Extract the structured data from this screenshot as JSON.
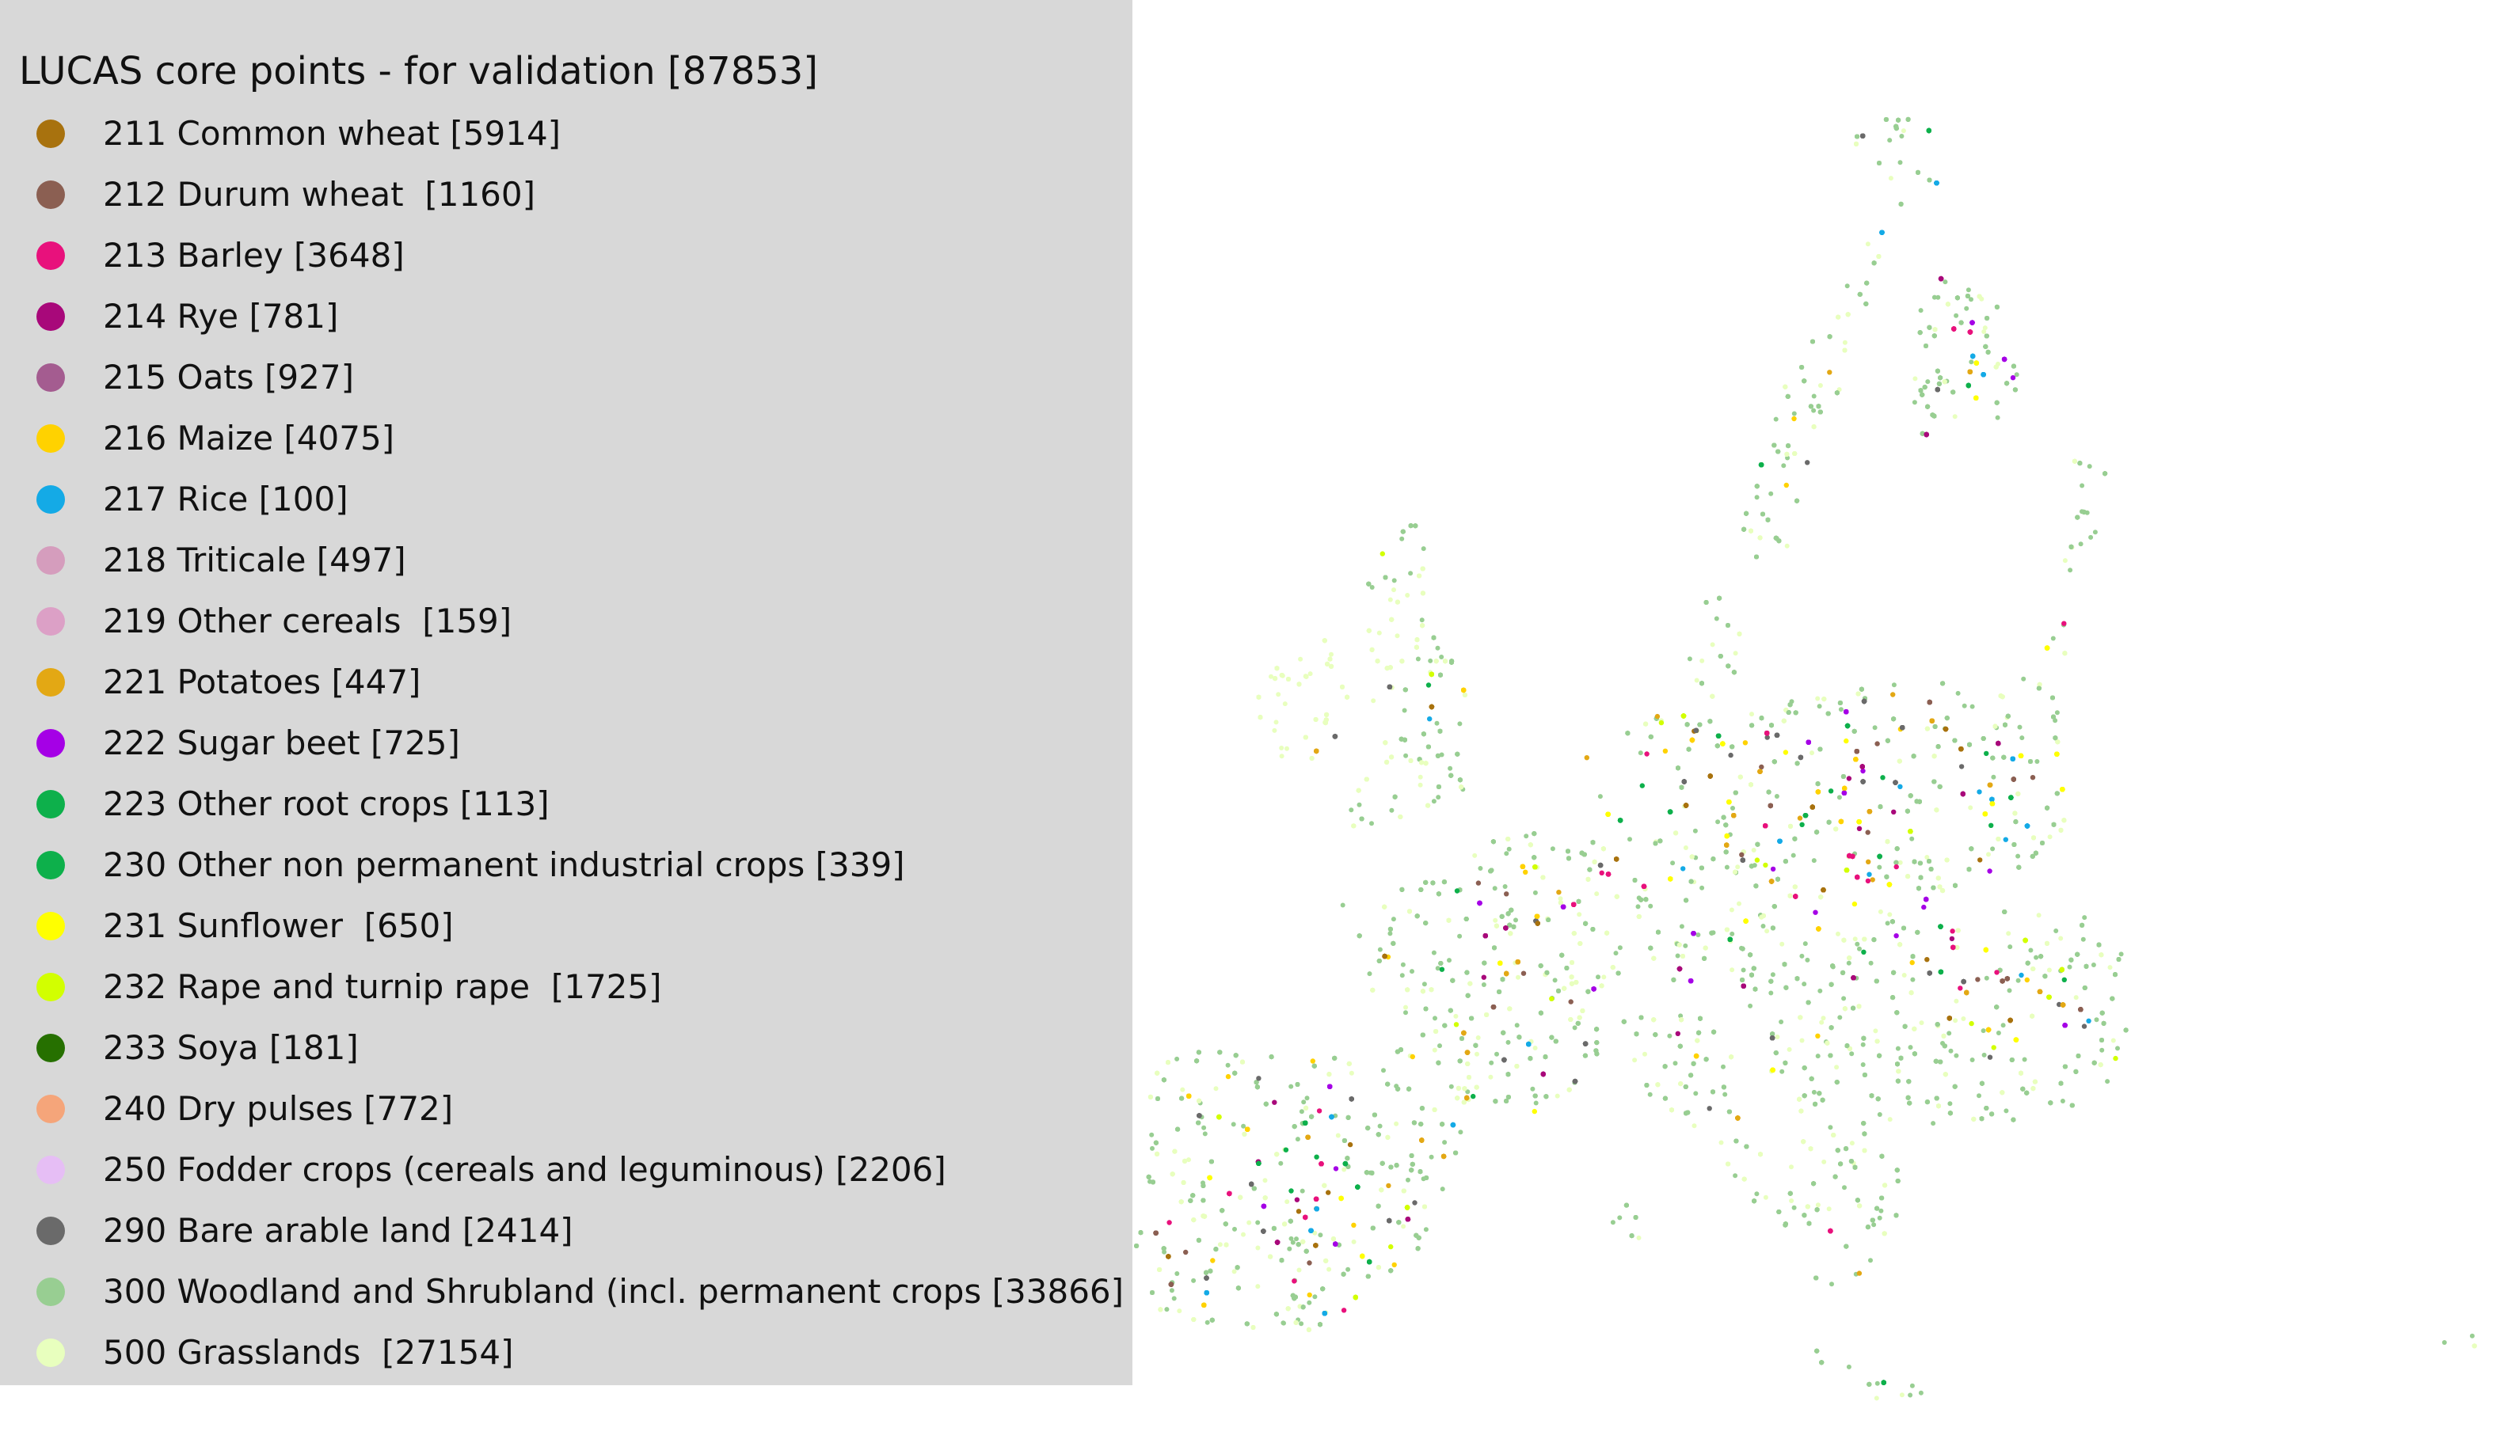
{
  "legend": {
    "title": "LUCAS core points - for validation [87853]",
    "items": [
      {
        "label": "211 Common wheat [5914]",
        "color": "#a8720e"
      },
      {
        "label": "212 Durum wheat  [1160]",
        "color": "#8b5f52"
      },
      {
        "label": "213 Barley [3648]",
        "color": "#e8117c"
      },
      {
        "label": "214 Rye [781]",
        "color": "#a8087a"
      },
      {
        "label": "215 Oats [927]",
        "color": "#a45c90"
      },
      {
        "label": "216 Maize [4075]",
        "color": "#ffd200"
      },
      {
        "label": "217 Rice [100]",
        "color": "#14aae6"
      },
      {
        "label": "218 Triticale [497]",
        "color": "#d59dbd"
      },
      {
        "label": "219 Other cereals  [159]",
        "color": "#dca0c6"
      },
      {
        "label": "221 Potatoes [447]",
        "color": "#e3a814"
      },
      {
        "label": "222 Sugar beet [725]",
        "color": "#a500e6"
      },
      {
        "label": "223 Other root crops [113]",
        "color": "#0db04b"
      },
      {
        "label": "230 Other non permanent industrial crops [339]",
        "color": "#0db04b"
      },
      {
        "label": "231 Sunflower  [650]",
        "color": "#ffff00"
      },
      {
        "label": "232 Rape and turnip rape  [1725]",
        "color": "#d2ff00"
      },
      {
        "label": "233 Soya [181]",
        "color": "#267000"
      },
      {
        "label": "240 Dry pulses [772]",
        "color": "#f5a57a"
      },
      {
        "label": "250 Fodder crops (cereals and leguminous) [2206]",
        "color": "#e6bef5"
      },
      {
        "label": "290 Bare arable land [2414]",
        "color": "#6a6a6a"
      },
      {
        "label": "300 Woodland and Shrubland (incl. permanent crops [33866]",
        "color": "#98ce92"
      },
      {
        "label": "500 Grasslands  [27154]",
        "color": "#e8ffbe"
      }
    ]
  },
  "map": {
    "land_point_color": "#98ce92",
    "grassland_point_color": "#e8ffbe",
    "crop_point_colors": [
      "#a8720e",
      "#e8117c",
      "#a8087a",
      "#ffd200",
      "#ffff00",
      "#d2ff00",
      "#8b5f52",
      "#a500e6",
      "#6a6a6a",
      "#14aae6",
      "#0db04b",
      "#e3a814"
    ]
  }
}
